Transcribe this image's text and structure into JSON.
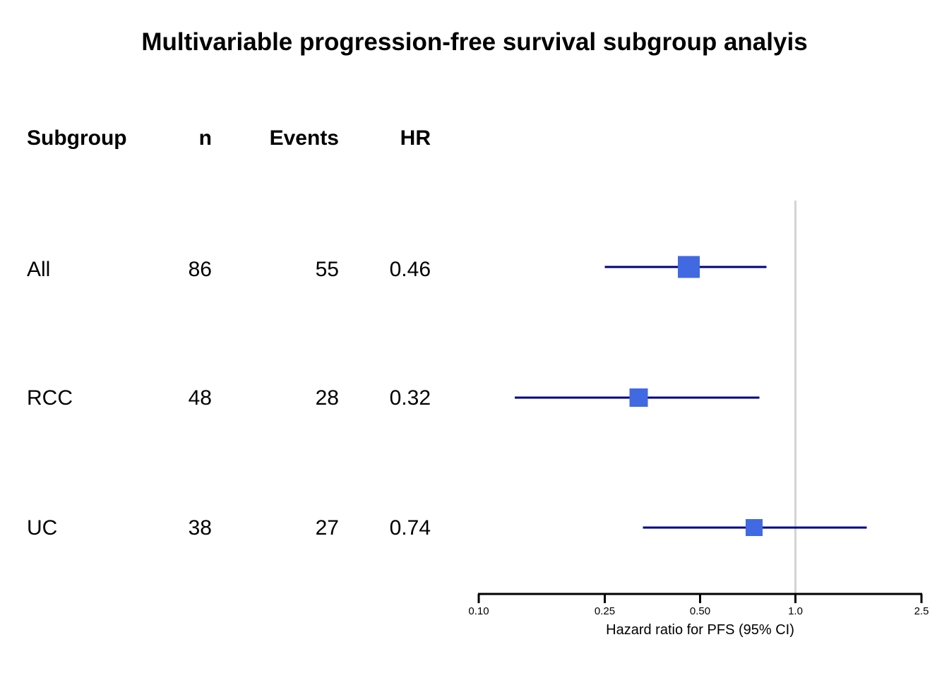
{
  "title": "Multivariable progression-free survival subgroup analyis",
  "table": {
    "headers": {
      "subgroup": "Subgroup",
      "n": "n",
      "events": "Events",
      "hr": "HR"
    },
    "rows": [
      {
        "subgroup": "All",
        "n": "86",
        "events": "55",
        "hr": "0.46"
      },
      {
        "subgroup": "RCC",
        "n": "48",
        "events": "28",
        "hr": "0.32"
      },
      {
        "subgroup": "UC",
        "n": "38",
        "events": "27",
        "hr": "0.74"
      }
    ]
  },
  "chart_data": {
    "type": "forest",
    "title": "Multivariable progression-free survival subgroup analyis",
    "x_scale": "log",
    "xlim": [
      0.1,
      2.5
    ],
    "x_ticks": [
      {
        "value": 0.1,
        "label": "0.10"
      },
      {
        "value": 0.25,
        "label": "0.25"
      },
      {
        "value": 0.5,
        "label": "0.50"
      },
      {
        "value": 1.0,
        "label": "1.0"
      },
      {
        "value": 2.5,
        "label": "2.5"
      }
    ],
    "xlabel": "Hazard ratio for PFS (95% CI)",
    "reference_line": 1.0,
    "grid": false,
    "series": [
      {
        "label": "All",
        "n": 86,
        "events": 55,
        "hr": 0.46,
        "ci_lower": 0.25,
        "ci_upper": 0.81,
        "marker_size": 31
      },
      {
        "label": "RCC",
        "n": 48,
        "events": 28,
        "hr": 0.32,
        "ci_lower": 0.13,
        "ci_upper": 0.77,
        "marker_size": 26
      },
      {
        "label": "UC",
        "n": 38,
        "events": 27,
        "hr": 0.74,
        "ci_lower": 0.33,
        "ci_upper": 1.68,
        "marker_size": 24
      }
    ],
    "colors": {
      "marker": "#4169e1",
      "ci_line": "#000080",
      "reference_line": "#d3d3d3",
      "axis": "#000000",
      "text": "#000000"
    }
  }
}
